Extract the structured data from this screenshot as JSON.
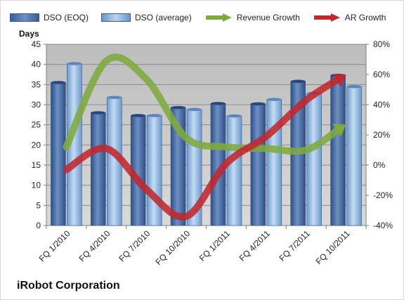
{
  "chart_data": {
    "type": "bar",
    "categories": [
      "FQ 1/2010",
      "FQ 4/2010",
      "FQ 7/2010",
      "FQ 10/2010",
      "FQ 1/2011",
      "FQ 4/2011",
      "FQ 7/2011",
      "FQ 10/2011"
    ],
    "series": [
      {
        "name": "DSO (EOQ)",
        "type": "bar",
        "axis": "left",
        "color": "#4f6fa3",
        "values": [
          35.5,
          28,
          27.3,
          29.3,
          30.3,
          30.2,
          35.8,
          37.3
        ]
      },
      {
        "name": "DSO (average)",
        "type": "bar",
        "axis": "left",
        "color": "#8fb4de",
        "values": [
          40.2,
          31.8,
          27.3,
          28.8,
          27.2,
          31.3,
          32.8,
          34.5
        ]
      },
      {
        "name": "Revenue Growth",
        "type": "line",
        "axis": "right",
        "color": "#7faa3f",
        "values": [
          0.12,
          0.69,
          0.57,
          0.18,
          0.12,
          0.11,
          0.1,
          0.27
        ]
      },
      {
        "name": "AR Growth",
        "type": "line",
        "axis": "right",
        "color": "#c0282d",
        "values": [
          -0.03,
          0.11,
          -0.16,
          -0.34,
          0.01,
          0.19,
          0.43,
          0.6
        ]
      }
    ],
    "ylabel": "Days",
    "ylim": [
      0,
      45
    ],
    "y_ticks": [
      "0",
      "5",
      "10",
      "15",
      "20",
      "25",
      "30",
      "35",
      "40",
      "45"
    ],
    "y2lim": [
      -0.4,
      0.8
    ],
    "y2_ticks": [
      "-40%",
      "-20%",
      "0%",
      "20%",
      "40%",
      "60%",
      "80%"
    ],
    "grid": true,
    "legend_position": "top"
  },
  "footer_label": "iRobot Corporation"
}
